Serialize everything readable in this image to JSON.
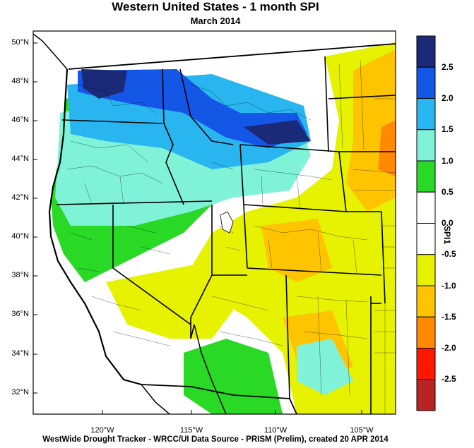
{
  "title": "Western United States - 1 month SPI",
  "subtitle": "March 2014",
  "footer": "WestWide Drought Tracker - WRCC/UI  Data Source - PRISM (Prelim), created 20 APR 2014",
  "legend": {
    "title": "SPI1",
    "labels": [
      "2.5",
      "2.0",
      "1.5",
      "1.0",
      "0.5",
      "0.0",
      "-0.5",
      "-1.0",
      "-1.5",
      "-2.0",
      "-2.5"
    ],
    "colors": [
      "#1b2a78",
      "#1456e6",
      "#29b6f0",
      "#7ff2d8",
      "#29d926",
      "#ffffff",
      "#ffffff",
      "#e6f200",
      "#ffc400",
      "#ff8a00",
      "#ff1800",
      "#b82424"
    ]
  },
  "axes": {
    "lat_labels": [
      "50°N",
      "48°N",
      "46°N",
      "44°N",
      "42°N",
      "40°N",
      "38°N",
      "36°N",
      "34°N",
      "32°N"
    ],
    "lon_labels": [
      "120°W",
      "115°W",
      "110°W",
      "105°W"
    ]
  }
}
